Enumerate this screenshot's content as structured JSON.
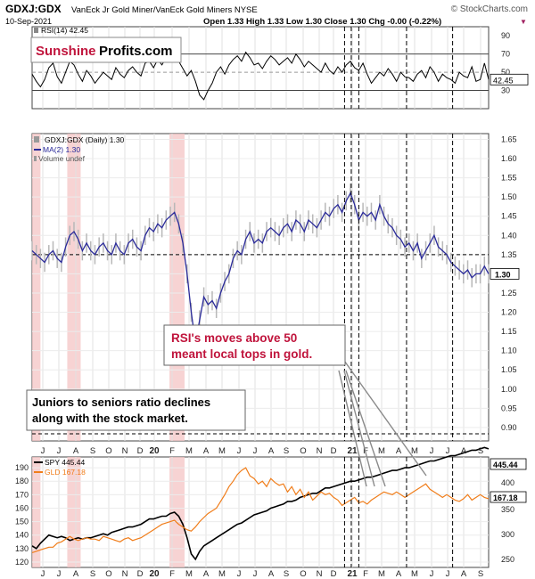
{
  "header": {
    "title_symbol": "GDXJ:GDX",
    "title_desc": "VanEck Jr Gold Miner/VanEck Gold Miners NYSE",
    "watermark": "© StockCharts.com",
    "date": "10-Sep-2021",
    "ohlc": "Open 1.33  High 1.33  Low 1.30  Close 1.30  Chg -0.00 (-0.22%)",
    "chg_marker": "▼"
  },
  "logo": {
    "part1": "Sunshine",
    "part2": "Profits.com"
  },
  "annotations": {
    "rsi_line1": "RSI's moves above 50",
    "rsi_line2": "meant local tops in gold.",
    "juniors_line1": "Juniors to seniors ratio declines",
    "juniors_line2": "along with the stock market."
  },
  "colors": {
    "gld": "#f07d1a",
    "ma": "#2a2a9a",
    "highlight": "#f4c4c4",
    "annotation_text": "#c0143c"
  },
  "chart_data": [
    {
      "type": "line",
      "panel": "rsi",
      "legend": "RSI(14) 42.45",
      "current_value_label": "42.45",
      "y_ticks": [
        30,
        50,
        70,
        90
      ],
      "ylim": [
        10,
        100
      ],
      "ref_lines": [
        30,
        50,
        70
      ],
      "x": [
        0,
        5,
        10,
        15,
        20,
        25,
        30,
        35,
        40,
        45,
        50,
        55,
        60,
        65,
        70,
        75,
        80,
        85,
        90,
        95,
        100,
        105,
        110,
        115,
        120,
        125,
        130,
        135,
        140,
        145,
        150,
        155,
        160,
        165,
        170,
        175,
        180,
        185,
        190,
        195,
        200,
        205,
        210,
        215,
        220,
        225,
        230,
        235,
        240,
        245,
        250,
        255,
        260,
        265,
        270,
        275,
        280,
        285,
        290,
        295,
        300,
        305,
        310,
        315,
        320,
        325,
        330,
        335,
        340,
        345,
        350,
        355,
        360,
        365,
        370,
        375,
        380,
        385,
        390,
        395,
        400,
        405,
        410,
        415,
        420,
        425,
        430,
        435,
        440,
        445,
        450,
        455,
        460,
        465,
        470,
        475,
        480,
        485,
        490,
        495,
        500,
        505,
        510,
        515,
        520,
        525,
        530,
        535,
        540,
        545
      ],
      "values": [
        48,
        40,
        34,
        42,
        55,
        60,
        45,
        38,
        50,
        62,
        58,
        48,
        40,
        52,
        46,
        38,
        44,
        50,
        46,
        42,
        55,
        48,
        44,
        52,
        56,
        50,
        46,
        60,
        62,
        55,
        64,
        58,
        66,
        68,
        72,
        62,
        54,
        46,
        52,
        40,
        25,
        20,
        30,
        38,
        50,
        56,
        48,
        58,
        64,
        68,
        62,
        72,
        66,
        58,
        60,
        54,
        62,
        68,
        64,
        58,
        62,
        66,
        60,
        70,
        64,
        56,
        62,
        58,
        54,
        50,
        60,
        52,
        48,
        56,
        50,
        58,
        62,
        55,
        52,
        60,
        48,
        38,
        44,
        50,
        46,
        54,
        48,
        40,
        50,
        45,
        44,
        40,
        48,
        52,
        44,
        56,
        50,
        40,
        48,
        44,
        42,
        38,
        50,
        46,
        44,
        56,
        40,
        42,
        60,
        42
      ],
      "xlim": [
        0,
        545
      ]
    },
    {
      "type": "line",
      "panel": "ratio",
      "legend": [
        "GDXJ:GDX (Daily) 1.30",
        "MA(2) 1.30",
        "Volume undef"
      ],
      "current_value_label": "1.30",
      "y_ticks": [
        0.9,
        0.95,
        1.0,
        1.05,
        1.1,
        1.15,
        1.2,
        1.25,
        1.3,
        1.35,
        1.4,
        1.45,
        1.5,
        1.55,
        1.6,
        1.65
      ],
      "y_tick_labels": [
        "0.90",
        "0.95",
        "1.00",
        "1.05",
        "1.10",
        "1.15",
        "1.20",
        "1.25",
        "1.30",
        "1.35",
        "1.40",
        "1.45",
        "1.50",
        "1.55",
        "1.60",
        "1.65"
      ],
      "ylim": [
        0.865,
        1.665
      ],
      "ref_lines": [
        1.35
      ],
      "x": [
        0,
        5,
        10,
        15,
        20,
        25,
        30,
        35,
        40,
        45,
        50,
        55,
        60,
        65,
        70,
        75,
        80,
        85,
        90,
        95,
        100,
        105,
        110,
        115,
        120,
        125,
        130,
        135,
        140,
        145,
        150,
        155,
        160,
        165,
        170,
        175,
        180,
        185,
        190,
        195,
        200,
        205,
        210,
        215,
        220,
        225,
        230,
        235,
        240,
        245,
        250,
        255,
        260,
        265,
        270,
        275,
        280,
        285,
        290,
        295,
        300,
        305,
        310,
        315,
        320,
        325,
        330,
        335,
        340,
        345,
        350,
        355,
        360,
        365,
        370,
        375,
        380,
        385,
        390,
        395,
        400,
        405,
        410,
        415,
        420,
        425,
        430,
        435,
        440,
        445,
        450,
        455,
        460,
        465,
        470,
        475,
        480,
        485,
        490,
        495,
        500,
        505,
        510,
        515,
        520,
        525,
        530,
        535,
        540,
        545
      ],
      "values": [
        1.36,
        1.35,
        1.34,
        1.33,
        1.35,
        1.36,
        1.34,
        1.33,
        1.37,
        1.4,
        1.41,
        1.39,
        1.36,
        1.38,
        1.36,
        1.35,
        1.37,
        1.38,
        1.36,
        1.35,
        1.38,
        1.36,
        1.35,
        1.38,
        1.39,
        1.37,
        1.36,
        1.4,
        1.42,
        1.41,
        1.43,
        1.42,
        1.44,
        1.45,
        1.46,
        1.43,
        1.38,
        1.3,
        1.2,
        1.12,
        1.18,
        1.24,
        1.22,
        1.23,
        1.21,
        1.25,
        1.28,
        1.3,
        1.34,
        1.36,
        1.35,
        1.39,
        1.41,
        1.38,
        1.39,
        1.38,
        1.41,
        1.42,
        1.41,
        1.4,
        1.42,
        1.43,
        1.41,
        1.44,
        1.43,
        1.41,
        1.44,
        1.43,
        1.42,
        1.44,
        1.46,
        1.45,
        1.47,
        1.48,
        1.46,
        1.49,
        1.51,
        1.48,
        1.44,
        1.46,
        1.45,
        1.46,
        1.44,
        1.48,
        1.45,
        1.43,
        1.42,
        1.4,
        1.39,
        1.37,
        1.38,
        1.36,
        1.38,
        1.34,
        1.36,
        1.38,
        1.4,
        1.37,
        1.36,
        1.35,
        1.33,
        1.32,
        1.31,
        1.3,
        1.31,
        1.29,
        1.3,
        1.3,
        1.32,
        1.3
      ],
      "xlim": [
        0,
        545
      ]
    },
    {
      "type": "line",
      "panel": "compare",
      "series": [
        {
          "name": "SPY 445.44",
          "current_value_label": "445.44",
          "values": [
            132,
            130,
            134,
            137,
            140,
            139,
            138,
            139,
            138,
            136,
            137,
            138,
            137,
            138,
            138,
            139,
            140,
            141,
            140,
            142,
            143,
            144,
            145,
            146,
            146,
            147,
            148,
            150,
            152,
            152,
            153,
            154,
            154,
            156,
            157,
            154,
            148,
            138,
            126,
            122,
            128,
            132,
            134,
            136,
            138,
            140,
            142,
            144,
            146,
            148,
            149,
            151,
            153,
            155,
            156,
            157,
            158,
            160,
            161,
            162,
            163,
            165,
            165,
            166,
            168,
            169,
            170,
            171,
            171,
            173,
            175,
            175,
            176,
            177,
            178,
            179,
            180,
            180,
            181,
            182,
            183,
            183,
            184,
            185,
            186,
            187,
            188,
            188,
            189,
            190,
            190,
            191,
            192,
            193,
            194,
            195,
            195,
            196,
            197,
            198,
            199,
            199,
            200,
            201,
            202,
            203,
            203,
            204,
            205,
            204
          ]
        },
        {
          "name": "GLD 167.18",
          "current_value_label": "167.18",
          "values": [
            127,
            128,
            129,
            130,
            131,
            131,
            134,
            135,
            137,
            139,
            137,
            136,
            137,
            138,
            137,
            137,
            136,
            139,
            138,
            137,
            136,
            135,
            137,
            138,
            136,
            137,
            138,
            140,
            142,
            144,
            146,
            148,
            149,
            150,
            151,
            148,
            146,
            144,
            143,
            146,
            150,
            153,
            156,
            158,
            160,
            165,
            170,
            176,
            180,
            185,
            188,
            190,
            184,
            182,
            178,
            180,
            176,
            182,
            179,
            177,
            178,
            172,
            176,
            170,
            174,
            168,
            172,
            166,
            169,
            172,
            170,
            171,
            168,
            166,
            162,
            164,
            166,
            168,
            164,
            165,
            163,
            166,
            168,
            170,
            172,
            171,
            170,
            172,
            170,
            168,
            170,
            172,
            174,
            176,
            178,
            174,
            172,
            170,
            168,
            170,
            168,
            166,
            165,
            167,
            170,
            166,
            168,
            170,
            168,
            167
          ]
        }
      ],
      "x": [
        0,
        5,
        10,
        15,
        20,
        25,
        30,
        35,
        40,
        45,
        50,
        55,
        60,
        65,
        70,
        75,
        80,
        85,
        90,
        95,
        100,
        105,
        110,
        115,
        120,
        125,
        130,
        135,
        140,
        145,
        150,
        155,
        160,
        165,
        170,
        175,
        180,
        185,
        190,
        195,
        200,
        205,
        210,
        215,
        220,
        225,
        230,
        235,
        240,
        245,
        250,
        255,
        260,
        265,
        270,
        275,
        280,
        285,
        290,
        295,
        300,
        305,
        310,
        315,
        320,
        325,
        330,
        335,
        340,
        345,
        350,
        355,
        360,
        365,
        370,
        375,
        380,
        385,
        390,
        395,
        400,
        405,
        410,
        415,
        420,
        425,
        430,
        435,
        440,
        445,
        450,
        455,
        460,
        465,
        470,
        475,
        480,
        485,
        490,
        495,
        500,
        505,
        510,
        515,
        520,
        525,
        530,
        535,
        540,
        545
      ],
      "y_ticks_left": [
        120,
        130,
        140,
        150,
        160,
        170,
        180,
        190
      ],
      "y_ticks_right": [
        250,
        300,
        350,
        400
      ],
      "y_tick_labels_right": [
        "250",
        "300",
        "350",
        "400"
      ],
      "ylim": [
        116,
        198
      ],
      "xlim": [
        0,
        545
      ]
    }
  ],
  "x_axis": {
    "ticks": [
      {
        "pos": 48,
        "label": "J"
      },
      {
        "pos": 66,
        "label": "J"
      },
      {
        "pos": 85,
        "label": "A"
      },
      {
        "pos": 104,
        "label": "S"
      },
      {
        "pos": 122,
        "label": "O"
      },
      {
        "pos": 140,
        "label": "N"
      },
      {
        "pos": 157,
        "label": "D"
      },
      {
        "pos": 173,
        "label": "20"
      },
      {
        "pos": 193,
        "label": "F"
      },
      {
        "pos": 212,
        "label": "M"
      },
      {
        "pos": 231,
        "label": "A"
      },
      {
        "pos": 249,
        "label": "M"
      },
      {
        "pos": 268,
        "label": "J"
      },
      {
        "pos": 286,
        "label": "J"
      },
      {
        "pos": 304,
        "label": "A"
      },
      {
        "pos": 321,
        "label": "S"
      },
      {
        "pos": 340,
        "label": "O"
      },
      {
        "pos": 358,
        "label": "N"
      },
      {
        "pos": 374,
        "label": "D"
      },
      {
        "pos": 395,
        "label": "21"
      },
      {
        "pos": 410,
        "label": "F"
      },
      {
        "pos": 428,
        "label": "M"
      },
      {
        "pos": 447,
        "label": "A"
      },
      {
        "pos": 465,
        "label": "M"
      },
      {
        "pos": 484,
        "label": "J"
      },
      {
        "pos": 502,
        "label": "J"
      },
      {
        "pos": 520,
        "label": "A"
      },
      {
        "pos": 539,
        "label": "S"
      }
    ],
    "bold_labels": [
      "20",
      "21"
    ]
  },
  "highlights": [
    [
      0,
      10
    ],
    [
      42,
      58
    ],
    [
      164,
      182
    ]
  ],
  "vlines": [
    373,
    381,
    390,
    447,
    502
  ]
}
